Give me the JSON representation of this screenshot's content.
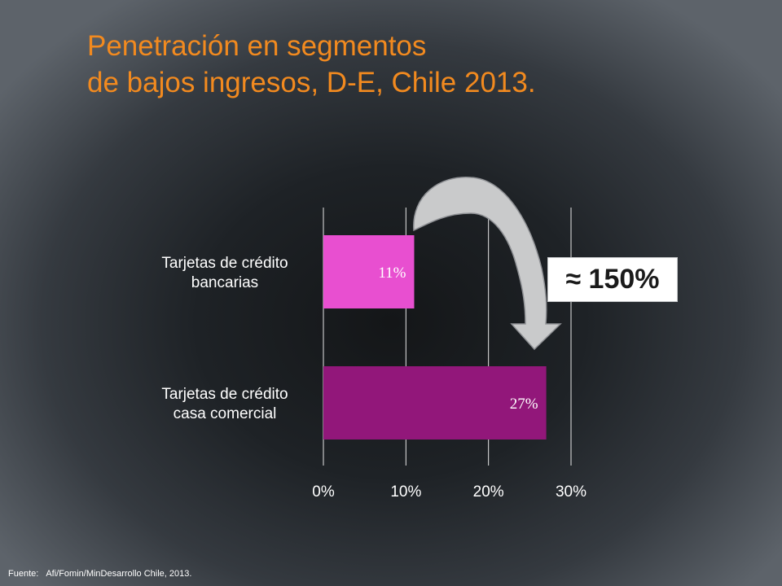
{
  "title": {
    "line1": "Penetración en segmentos",
    "line2": "de bajos ingresos, D-E, Chile 2013."
  },
  "chart_data": {
    "type": "bar",
    "orientation": "horizontal",
    "categories": [
      [
        "Tarjetas de crédito",
        "bancarias"
      ],
      [
        "Tarjetas de crédito",
        "casa comercial"
      ]
    ],
    "values": [
      11,
      27
    ],
    "data_labels": [
      "11%",
      "27%"
    ],
    "bar_colors": [
      "#e84fd0",
      "#92177a"
    ],
    "xlim": [
      0,
      30
    ],
    "xticks": [
      0,
      10,
      20,
      30
    ],
    "xtick_labels": [
      "0%",
      "10%",
      "20%",
      "30%"
    ],
    "grid": true,
    "annotation": "≈ 150%"
  },
  "arrow": {
    "color": "#c9cacb",
    "stroke": "#8f9195",
    "icon": "curved-arrow-icon"
  },
  "footer": {
    "label": "Fuente:",
    "text": "Afi/Fomin/MinDesarrollo Chile, 2013."
  }
}
